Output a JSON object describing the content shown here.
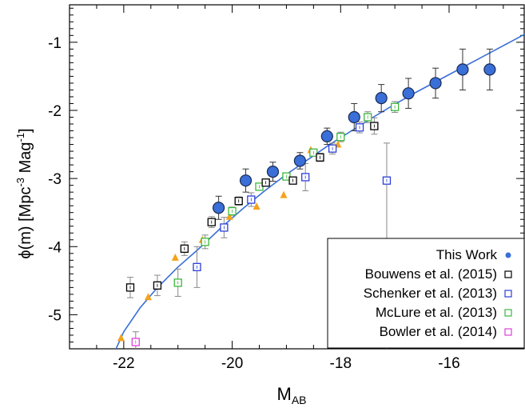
{
  "chart_data": {
    "type": "scatter",
    "xlabel": "M",
    "xlabel_sub": "AB",
    "ylabel_parts": [
      "ϕ(m) [Mpc",
      "-3",
      " Mag",
      "-1",
      "]"
    ],
    "xlim": [
      -23,
      -14.6
    ],
    "ylim": [
      -5.5,
      -0.45
    ],
    "x_ticks": [
      -22,
      -20,
      -18,
      -16
    ],
    "x_tick_labels": [
      "-22",
      "-20",
      "-18",
      "-16"
    ],
    "y_ticks": [
      -5,
      -4,
      -3,
      -2,
      -1
    ],
    "y_tick_labels": [
      "-5",
      "-4",
      "-3",
      "-2",
      "-1"
    ],
    "legend_position": "bottom-right",
    "grid": false,
    "fit_curve": {
      "color": "#3a6fd8",
      "points": [
        [
          -22.2,
          -5.6
        ],
        [
          -22.0,
          -5.25
        ],
        [
          -21.7,
          -4.9
        ],
        [
          -21.4,
          -4.62
        ],
        [
          -21.0,
          -4.3
        ],
        [
          -20.6,
          -4.02
        ],
        [
          -20.2,
          -3.72
        ],
        [
          -19.8,
          -3.44
        ],
        [
          -19.4,
          -3.18
        ],
        [
          -19.0,
          -2.94
        ],
        [
          -18.6,
          -2.72
        ],
        [
          -18.2,
          -2.5
        ],
        [
          -17.8,
          -2.3
        ],
        [
          -17.4,
          -2.1
        ],
        [
          -17.0,
          -1.91
        ],
        [
          -16.6,
          -1.73
        ],
        [
          -16.2,
          -1.56
        ],
        [
          -15.8,
          -1.39
        ],
        [
          -15.4,
          -1.22
        ],
        [
          -15.0,
          -1.05
        ],
        [
          -14.6,
          -0.88
        ]
      ]
    },
    "series": [
      {
        "name": "This Work",
        "marker": "filled-circle",
        "color": "#3a6fd8",
        "points": [
          {
            "x": -20.25,
            "y": -3.43,
            "err": 0.17
          },
          {
            "x": -19.75,
            "y": -3.03,
            "err": 0.17
          },
          {
            "x": -19.25,
            "y": -2.9,
            "err": 0.14
          },
          {
            "x": -18.75,
            "y": -2.74,
            "err": 0.12
          },
          {
            "x": -18.25,
            "y": -2.38,
            "err": 0.12
          },
          {
            "x": -17.75,
            "y": -2.1,
            "err": 0.2
          },
          {
            "x": -17.25,
            "y": -1.82,
            "err": 0.2
          },
          {
            "x": -16.75,
            "y": -1.75,
            "err": 0.22
          },
          {
            "x": -16.25,
            "y": -1.6,
            "err": 0.22
          },
          {
            "x": -15.75,
            "y": -1.4,
            "err": 0.3
          },
          {
            "x": -15.25,
            "y": -1.4,
            "err": 0.3
          }
        ]
      },
      {
        "name": "Bouwens et al. (2015)",
        "marker": "open-square",
        "color": "#000000",
        "points": [
          {
            "x": -21.88,
            "y": -4.6,
            "err": 0.15
          },
          {
            "x": -21.38,
            "y": -4.57,
            "err": 0.15
          },
          {
            "x": -20.88,
            "y": -4.03,
            "err": 0.1
          },
          {
            "x": -20.38,
            "y": -3.64,
            "err": 0.08
          },
          {
            "x": -19.88,
            "y": -3.33,
            "err": 0.06
          },
          {
            "x": -19.38,
            "y": -3.06,
            "err": 0.05
          },
          {
            "x": -18.88,
            "y": -3.03,
            "err": 0.05
          },
          {
            "x": -18.38,
            "y": -2.69,
            "err": 0.06
          },
          {
            "x": -17.38,
            "y": -2.23,
            "err": 0.12
          }
        ]
      },
      {
        "name": "Schenker et al. (2013)",
        "marker": "open-square",
        "color": "#2b3fd8",
        "points": [
          {
            "x": -20.65,
            "y": -4.3,
            "err": 0.3
          },
          {
            "x": -20.15,
            "y": -3.72,
            "err": 0.15
          },
          {
            "x": -19.65,
            "y": -3.31,
            "err": 0.1
          },
          {
            "x": -18.65,
            "y": -2.98,
            "err": 0.2
          },
          {
            "x": -18.15,
            "y": -2.56,
            "err": 0.08
          },
          {
            "x": -17.65,
            "y": -2.25,
            "err": 0.08
          },
          {
            "x": -17.15,
            "y": -3.03,
            "err": 0.55,
            "err_low": 2.6
          }
        ]
      },
      {
        "name": "McLure et al. (2013)",
        "marker": "open-square",
        "color": "#3cb83c",
        "points": [
          {
            "x": -21.0,
            "y": -4.53,
            "err": 0.2
          },
          {
            "x": -20.5,
            "y": -3.93,
            "err": 0.1
          },
          {
            "x": -20.0,
            "y": -3.48,
            "err": 0.06
          },
          {
            "x": -19.5,
            "y": -3.12,
            "err": 0.05
          },
          {
            "x": -19.0,
            "y": -2.97,
            "err": 0.05
          },
          {
            "x": -18.5,
            "y": -2.62,
            "err": 0.05
          },
          {
            "x": -18.0,
            "y": -2.39,
            "err": 0.07
          },
          {
            "x": -17.5,
            "y": -2.1,
            "err": 0.08
          },
          {
            "x": -17.0,
            "y": -1.95,
            "err": 0.08
          }
        ]
      },
      {
        "name": "Bowler et al. (2014)",
        "marker": "open-square",
        "color": "#e040d8",
        "points": [
          {
            "x": -21.78,
            "y": -5.4,
            "err": 0.15
          }
        ]
      },
      {
        "marker": "filled-triangle",
        "color": "#f5a31a",
        "points": [
          {
            "x": -22.05,
            "y": -5.34
          },
          {
            "x": -21.55,
            "y": -4.74
          },
          {
            "x": -21.05,
            "y": -4.16
          },
          {
            "x": -20.55,
            "y": -3.9
          },
          {
            "x": -20.05,
            "y": -3.56
          },
          {
            "x": -19.55,
            "y": -3.41
          },
          {
            "x": -19.05,
            "y": -3.24
          },
          {
            "x": -18.55,
            "y": -2.58
          },
          {
            "x": -18.05,
            "y": -2.5
          }
        ]
      }
    ]
  }
}
